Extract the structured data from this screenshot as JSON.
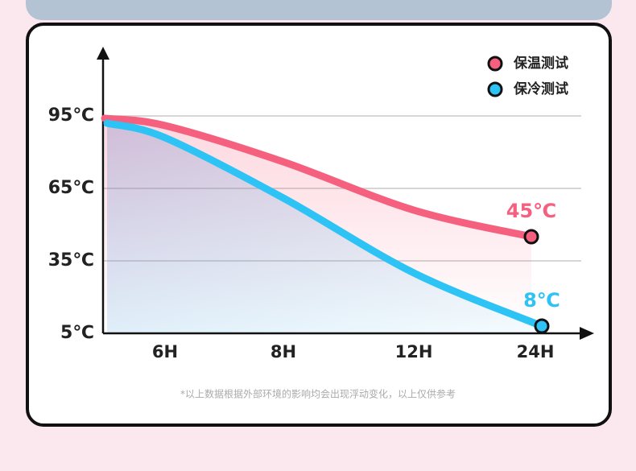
{
  "chart_data": {
    "type": "line",
    "categories": [
      null,
      "6H",
      "8H",
      "12H",
      "24H"
    ],
    "series": [
      {
        "name": "保温测试",
        "color": "#f5607f",
        "values": [
          94,
          91,
          76,
          56,
          45
        ],
        "value_labels": [
          null,
          null,
          null,
          null,
          "45℃"
        ]
      },
      {
        "name": "保冷测试",
        "color": "#2ec3f5",
        "values": [
          92,
          86,
          61,
          30,
          8
        ],
        "value_labels": [
          null,
          null,
          null,
          null,
          "8℃"
        ]
      }
    ],
    "ylim": [
      5,
      120
    ],
    "yticks": [
      {
        "value": 5,
        "label": "5℃"
      },
      {
        "value": 35,
        "label": "35℃"
      },
      {
        "value": 65,
        "label": "65℃"
      },
      {
        "value": 95,
        "label": "95℃"
      }
    ],
    "grid": true,
    "legend": "top-right",
    "footnote": "*以上数据根据外部环境的影响均会出现浮动变化，以上仅供参考"
  }
}
